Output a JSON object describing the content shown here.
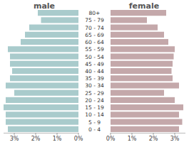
{
  "chart_data": {
    "type": "bar",
    "orientation": "horizontal",
    "categories": [
      "0 - 4",
      "5 - 9",
      "10 - 14",
      "15 - 19",
      "20 - 24",
      "25 - 29",
      "30 - 34",
      "35 - 39",
      "40 - 44",
      "45 - 49",
      "50 - 54",
      "55 - 59",
      "60 - 64",
      "65 - 69",
      "70 - 74",
      "75 - 79",
      "80+"
    ],
    "series": [
      {
        "name": "male",
        "color": "#a9cbcc",
        "values": [
          3.3,
          3.4,
          3.4,
          3.5,
          3.4,
          3.0,
          3.4,
          3.2,
          3.1,
          3.2,
          3.2,
          3.3,
          2.7,
          2.5,
          2.3,
          1.75,
          1.9
        ]
      },
      {
        "name": "female",
        "color": "#c4a8aa",
        "values": [
          3.2,
          3.35,
          3.2,
          3.4,
          3.0,
          2.5,
          3.2,
          2.9,
          2.85,
          2.9,
          2.95,
          3.0,
          2.7,
          2.5,
          2.2,
          1.7,
          2.6
        ]
      }
    ],
    "xlim": [
      0,
      3.5
    ],
    "xticks": [
      {
        "value": 3,
        "label": "3%"
      },
      {
        "value": 2,
        "label": "2%"
      },
      {
        "value": 1,
        "label": "1%"
      },
      {
        "value": 0,
        "label": "0%"
      }
    ]
  }
}
